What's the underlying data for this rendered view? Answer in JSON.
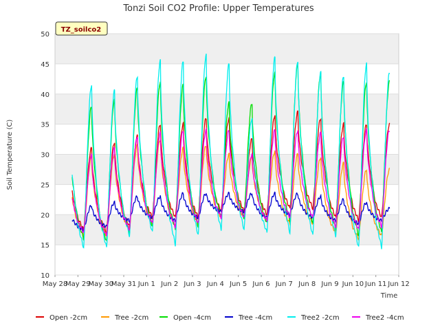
{
  "chart_data": {
    "type": "line",
    "title": "Tonzi Soil CO2 Profile: Upper Temperatures",
    "xlabel": "Time",
    "ylabel": "Soil Temperature (C)",
    "ylim": [
      10,
      50
    ],
    "yticks": [
      10,
      15,
      20,
      25,
      30,
      35,
      40,
      45,
      50
    ],
    "xlim": [
      0,
      15
    ],
    "x_tick_labels": [
      "May 28",
      "May 29",
      "May 30",
      "May 31",
      "Jun 1",
      "Jun 2",
      "Jun 3",
      "Jun 4",
      "Jun 5",
      "Jun 6",
      "Jun 7",
      "Jun 8",
      "Jun 9",
      "Jun 10",
      "Jun 11",
      "Jun 12"
    ],
    "x_unit": "days since May 28 00:00",
    "grid": true,
    "legend_position": "bottom",
    "badge": "TZ_soilco2",
    "series": [
      {
        "name": "Open -2cm",
        "color": "#dd0000",
        "daily_min": [
          18.0,
          17.5,
          17.0,
          18.0,
          19.5,
          19.5,
          19.5,
          20.5,
          20.5,
          20.0,
          21.0,
          21.0,
          19.5,
          19.0,
          19.5
        ],
        "daily_max": [
          30.0,
          31.0,
          32.0,
          33.0,
          35.0,
          35.0,
          36.0,
          36.0,
          32.5,
          36.5,
          37.0,
          36.0,
          35.0,
          35.0,
          35.0
        ]
      },
      {
        "name": "Tree -2cm",
        "color": "#ff9900",
        "daily_min": [
          17.5,
          16.5,
          16.5,
          17.5,
          18.5,
          18.0,
          18.5,
          19.5,
          19.5,
          19.0,
          18.5,
          18.5,
          17.0,
          16.0,
          16.5
        ],
        "daily_max": [
          29.0,
          29.5,
          30.0,
          31.5,
          32.5,
          31.0,
          31.5,
          30.0,
          29.5,
          30.5,
          30.0,
          29.5,
          28.5,
          27.5,
          27.5
        ]
      },
      {
        "name": "Open -4cm",
        "color": "#00dd00",
        "daily_min": [
          17.0,
          16.0,
          15.5,
          17.0,
          18.0,
          17.5,
          18.0,
          19.5,
          19.5,
          18.5,
          19.0,
          18.5,
          17.5,
          16.5,
          17.0
        ],
        "daily_max": [
          36.5,
          38.0,
          39.0,
          41.0,
          42.0,
          41.5,
          43.0,
          38.5,
          38.5,
          43.5,
          45.0,
          43.5,
          42.0,
          42.0,
          42.0
        ]
      },
      {
        "name": "Tree -4cm",
        "color": "#0000cc",
        "daily_min": [
          18.0,
          17.5,
          18.0,
          19.0,
          19.5,
          19.0,
          19.5,
          20.5,
          20.5,
          19.5,
          20.0,
          19.5,
          19.0,
          18.5,
          19.0
        ],
        "daily_max": [
          21.0,
          21.5,
          22.0,
          23.0,
          23.0,
          23.5,
          23.5,
          23.5,
          23.5,
          23.5,
          23.5,
          23.0,
          22.5,
          22.0,
          21.0
        ]
      },
      {
        "name": "Tree2 -2cm",
        "color": "#00eeee",
        "daily_min": [
          14.5,
          14.5,
          14.5,
          16.5,
          17.0,
          15.0,
          16.5,
          17.5,
          17.5,
          17.0,
          17.0,
          16.5,
          16.5,
          14.5,
          14.5
        ],
        "daily_max": [
          39.0,
          41.5,
          40.5,
          43.0,
          45.5,
          45.5,
          46.5,
          45.0,
          36.0,
          46.0,
          45.5,
          43.5,
          43.0,
          45.0,
          43.5
        ]
      },
      {
        "name": "Tree2 -4cm",
        "color": "#ee00ee",
        "daily_min": [
          16.0,
          17.0,
          16.5,
          17.5,
          18.5,
          18.0,
          18.5,
          19.5,
          19.5,
          19.0,
          19.5,
          19.5,
          18.0,
          17.5,
          18.0
        ],
        "daily_max": [
          28.5,
          30.0,
          31.0,
          33.0,
          33.5,
          34.0,
          34.0,
          34.0,
          30.0,
          34.0,
          34.0,
          33.5,
          33.0,
          34.0,
          34.0
        ]
      }
    ]
  }
}
